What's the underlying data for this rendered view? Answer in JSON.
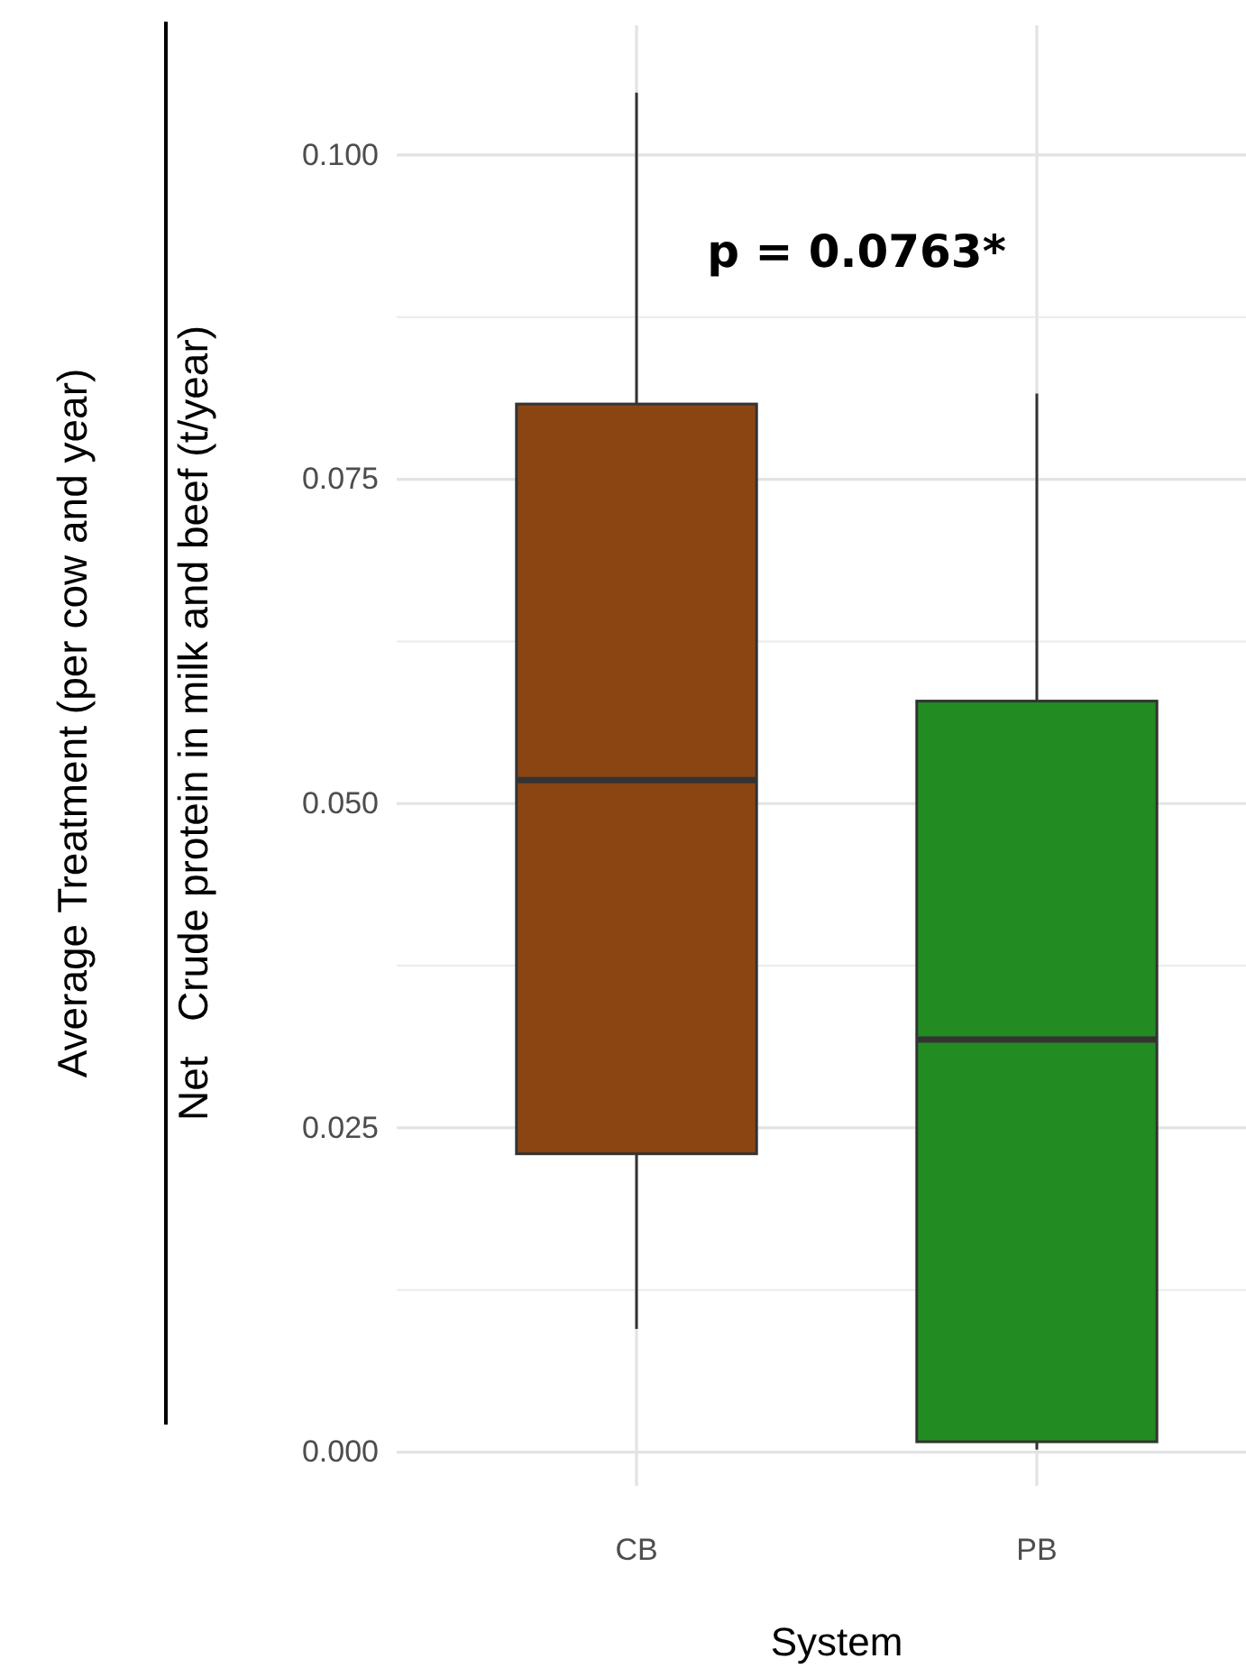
{
  "chart_data": {
    "type": "box",
    "categories": [
      "CB",
      "PB"
    ],
    "series": [
      {
        "colors": [
          "#8b4513",
          "#228b22"
        ],
        "boxes": [
          {
            "low": 0.0095,
            "q1": 0.023,
            "median": 0.0518,
            "q3": 0.0808,
            "high": 0.1048
          },
          {
            "low": 0.0002,
            "q1": 0.0008,
            "median": 0.0318,
            "q3": 0.0579,
            "high": 0.0816
          }
        ]
      }
    ],
    "xlabel": "System",
    "ylabel": "Net   Crude protein in milk and beef (t/year)\nAverage Treatment (per cow and year)",
    "ylim": [
      -0.0026,
      0.11
    ],
    "yticks": [
      {
        "value": 0,
        "label": "0.000"
      },
      {
        "value": 0.025,
        "label": "0.025"
      },
      {
        "value": 0.05,
        "label": "0.050"
      },
      {
        "value": 0.075,
        "label": "0.075"
      },
      {
        "value": 0.1,
        "label": "0.100"
      }
    ],
    "grid": true,
    "annotations": [
      "p = 0.0763*"
    ]
  }
}
